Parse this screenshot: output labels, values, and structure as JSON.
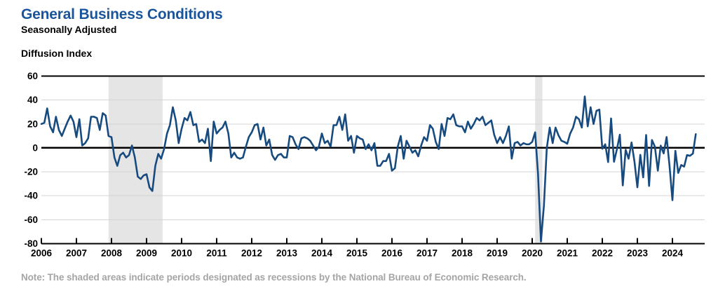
{
  "header": {
    "title": "General Business Conditions",
    "subtitle": "Seasonally Adjusted",
    "axis_label": "Diffusion Index"
  },
  "note": "Note: The shaded areas indicate periods designated as recessions by the National Bureau of Economic Research.",
  "colors": {
    "title_blue": "#1a559b",
    "line_blue": "#174b7f",
    "recession_gray": "#e5e5e5",
    "grid_gray": "#d4d4d4",
    "axis_black": "#000000",
    "note_gray": "#a5a5a5"
  },
  "chart_data": {
    "type": "line",
    "title": "General Business Conditions",
    "subtitle": "Seasonally Adjusted",
    "ylabel": "Diffusion Index",
    "ylim": [
      -80,
      60
    ],
    "y_ticks": [
      60,
      40,
      20,
      0,
      -20,
      -40,
      -60,
      -80
    ],
    "solid_black_levels": [
      60,
      0,
      -80
    ],
    "zero_line": true,
    "grid": "light horizontal every 20",
    "legend": "none",
    "frequency": "monthly",
    "x_start": "2006-01",
    "x_end": "2024-09",
    "x_tick_years": [
      "2006",
      "2007",
      "2008",
      "2009",
      "2010",
      "2011",
      "2012",
      "2013",
      "2014",
      "2015",
      "2016",
      "2017",
      "2018",
      "2019",
      "2020",
      "2021",
      "2022",
      "2023",
      "2024"
    ],
    "recessions": [
      {
        "start": "2007-12",
        "end": "2009-06"
      },
      {
        "start": "2020-02",
        "end": "2020-04"
      }
    ],
    "values": [
      20,
      21,
      33,
      18,
      13,
      26,
      15,
      10,
      16,
      22,
      27,
      22,
      9,
      24,
      2,
      4,
      8,
      26,
      26,
      25,
      15,
      29,
      27,
      10,
      9,
      -8,
      -15,
      -6,
      -4,
      -8,
      -6,
      2,
      -8,
      -24,
      -26,
      -23,
      -22,
      -33,
      -36,
      -15,
      -5,
      -9,
      -1,
      12,
      19,
      34,
      23,
      4,
      16,
      25,
      23,
      30,
      19,
      20,
      5,
      7,
      4,
      16,
      -11,
      22,
      12,
      15,
      17,
      22,
      12,
      -8,
      -4,
      -8,
      -9,
      -8,
      1,
      9,
      13,
      19,
      20,
      7,
      17,
      2,
      7,
      -6,
      -10,
      -6,
      -5,
      -8,
      -8,
      10,
      9,
      3,
      -1,
      8,
      9,
      8,
      6,
      2,
      -2,
      1,
      12,
      4,
      6,
      1,
      19,
      19,
      26,
      15,
      28,
      6,
      10,
      -4,
      10,
      8,
      7,
      -1,
      3,
      -2,
      4,
      -15,
      -15,
      -11,
      -11,
      -5,
      -19,
      -17,
      1,
      10,
      -9,
      6,
      1,
      -4,
      -2,
      -7,
      2,
      9,
      6,
      19,
      16,
      5,
      -1,
      20,
      10,
      25,
      24,
      28,
      19,
      18,
      18,
      13,
      22,
      16,
      20,
      25,
      23,
      26,
      19,
      21,
      23,
      11,
      4,
      9,
      4,
      10,
      18,
      -9,
      4,
      5,
      2,
      4,
      3,
      3,
      5,
      13,
      -21.5,
      -78.2,
      -48.5,
      -0.2,
      17,
      4,
      17,
      10.5,
      6,
      5,
      3.5,
      12,
      17,
      26,
      24,
      17,
      43,
      18,
      34,
      20,
      31,
      32,
      -0.7,
      3,
      -11.8,
      24.6,
      -11.6,
      -1.2,
      11,
      -31.3,
      -1.5,
      -9,
      4.5,
      -11.2,
      -32.9,
      -5.8,
      -24.6,
      10.8,
      -31.8,
      6.6,
      1.1,
      -19,
      1.9,
      -4.6,
      9.1,
      -14.5,
      -43.7,
      -2.4,
      -20.9,
      -14.3,
      -15.6,
      -6,
      -6.6,
      -4.7,
      11.5
    ]
  }
}
